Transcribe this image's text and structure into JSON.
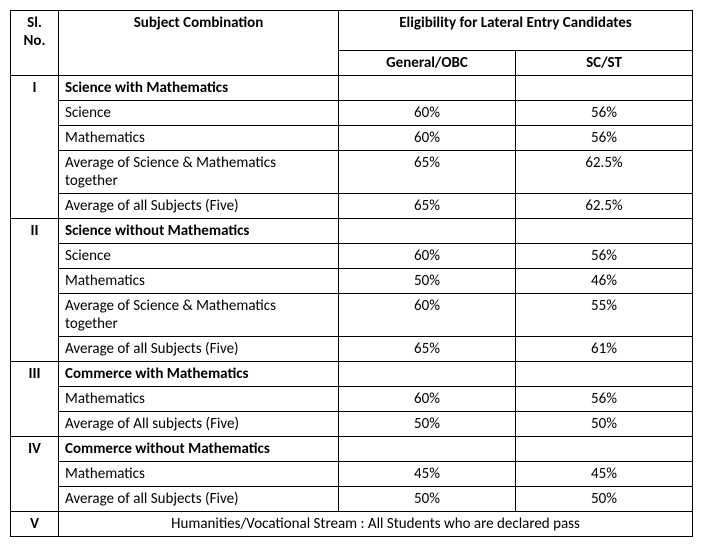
{
  "headers": {
    "slno": "Sl. No.",
    "subject": "Subject Combination",
    "elig": "Eligibility for Lateral Entry Candidates",
    "gen": "General/OBC",
    "scst": "SC/ST"
  },
  "sections": [
    {
      "num": "I",
      "title": "Science with Mathematics",
      "rows": [
        {
          "label": "Science",
          "gen": "60%",
          "scst": "56%"
        },
        {
          "label": "Mathematics",
          "gen": "60%",
          "scst": "56%"
        },
        {
          "label": "Average of Science & Mathematics together",
          "gen": "65%",
          "scst": "62.5%"
        },
        {
          "label": "Average of all Subjects (Five)",
          "gen": "65%",
          "scst": "62.5%"
        }
      ]
    },
    {
      "num": "II",
      "title": "Science without Mathematics",
      "rows": [
        {
          "label": "Science",
          "gen": "60%",
          "scst": "56%"
        },
        {
          "label": "Mathematics",
          "gen": "50%",
          "scst": "46%"
        },
        {
          "label": "Average of Science & Mathematics together",
          "gen": "60%",
          "scst": "55%"
        },
        {
          "label": "Average of all Subjects (Five)",
          "gen": "65%",
          "scst": "61%"
        }
      ]
    },
    {
      "num": "III",
      "title": "Commerce with Mathematics",
      "rows": [
        {
          "label": "Mathematics",
          "gen": "60%",
          "scst": "56%"
        },
        {
          "label": "Average of All subjects (Five)",
          "gen": "50%",
          "scst": "50%"
        }
      ]
    },
    {
      "num": "IV",
      "title": "Commerce without Mathematics",
      "rows": [
        {
          "label": "Mathematics",
          "gen": "45%",
          "scst": "45%"
        },
        {
          "label": "Average of all Subjects (Five)",
          "gen": "50%",
          "scst": "50%"
        }
      ]
    }
  ],
  "final": {
    "num": "V",
    "text": "Humanities/Vocational Stream : All Students who are declared pass"
  }
}
